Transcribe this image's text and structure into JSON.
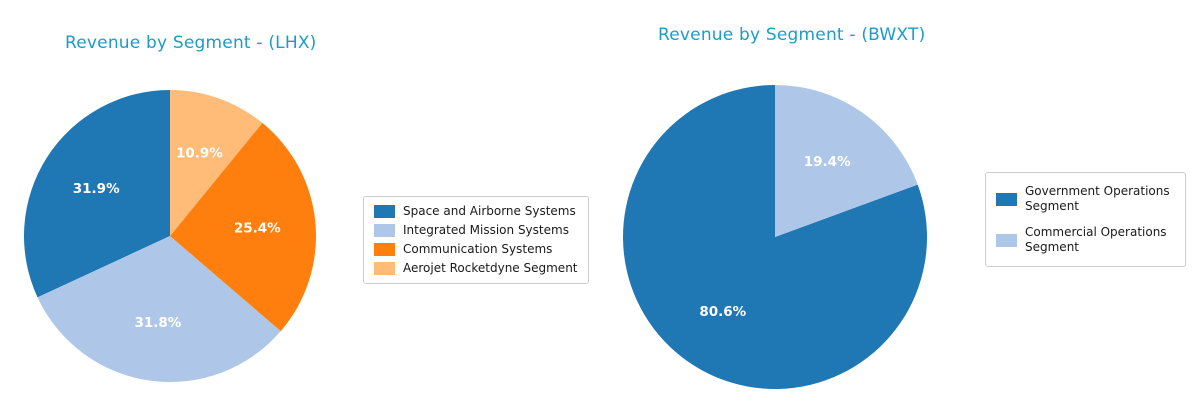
{
  "page": {
    "background": "#ffffff",
    "title_color": "#1b9cc9",
    "pct_label_color": "#ffffff",
    "legend_border_color": "#cccccc",
    "legend_text_color": "#1a1a1a"
  },
  "chart_data": [
    {
      "type": "pie",
      "title": "Revenue by Segment - (LHX)",
      "labels": [
        "Space and Airborne Systems",
        "Integrated Mission Systems",
        "Communication Systems",
        "Aerojet Rocketdyne Segment"
      ],
      "values": [
        31.9,
        31.8,
        25.4,
        10.9
      ],
      "value_labels": [
        "31.9%",
        "31.8%",
        "25.4%",
        "10.9%"
      ],
      "colors": [
        "#1f77b4",
        "#aec7e8",
        "#ff7f0e",
        "#ffbb78"
      ],
      "start_angle": 90,
      "direction": "counterclockwise",
      "pct_distance": 0.6,
      "legend_position": "right"
    },
    {
      "type": "pie",
      "title": "Revenue by Segment - (BWXT)",
      "labels": [
        "Government Operations Segment",
        "Commercial Operations Segment"
      ],
      "values": [
        80.6,
        19.4
      ],
      "value_labels": [
        "80.6%",
        "19.4%"
      ],
      "colors": [
        "#1f77b4",
        "#aec7e8"
      ],
      "start_angle": 90,
      "direction": "counterclockwise",
      "pct_distance": 0.6,
      "legend_position": "right"
    }
  ]
}
